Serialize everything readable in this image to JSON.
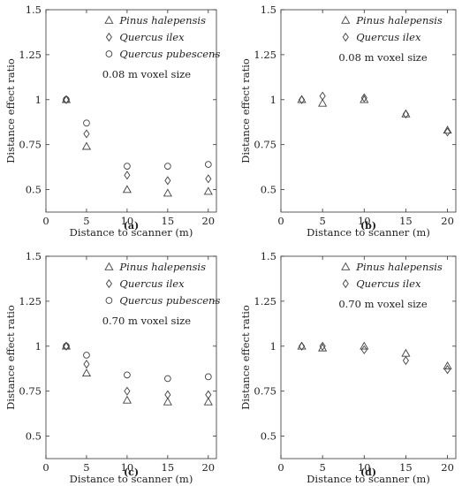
{
  "figure": {
    "marker_color": "#404040",
    "axis_color": "#333333"
  },
  "chart_data": [
    {
      "type": "scatter",
      "caption": "(a)",
      "annotation": "0.08 m voxel size",
      "xlabel": "Distance to scanner (m)",
      "ylabel": "Distance effect ratio",
      "xlim": [
        0,
        21
      ],
      "ylim": [
        0.375,
        1.5
      ],
      "xticks": [
        0,
        5,
        10,
        15,
        20
      ],
      "yticks": [
        0.5,
        0.75,
        1,
        1.25,
        1.5
      ],
      "ytick_labels": [
        "0.5",
        "0.75",
        "1",
        "1.25",
        "1.5"
      ],
      "grid": false,
      "legend_position": "top-right",
      "series": [
        {
          "name": "Pinus halepensis",
          "marker": "triangle",
          "x": [
            2.5,
            5,
            10,
            15,
            20
          ],
          "y": [
            1.0,
            0.74,
            0.5,
            0.48,
            0.49
          ]
        },
        {
          "name": "Quercus ilex",
          "marker": "diamond",
          "x": [
            2.5,
            5,
            10,
            15,
            20
          ],
          "y": [
            1.0,
            0.81,
            0.58,
            0.55,
            0.56
          ]
        },
        {
          "name": "Quercus pubescens",
          "marker": "circle",
          "x": [
            2.5,
            5,
            10,
            15,
            20
          ],
          "y": [
            1.0,
            0.87,
            0.63,
            0.63,
            0.64
          ]
        }
      ]
    },
    {
      "type": "scatter",
      "caption": "(b)",
      "annotation": "0.08 m voxel size",
      "xlabel": "Distance to scanner (m)",
      "ylabel": "Distance effect ratio",
      "xlim": [
        0,
        21
      ],
      "ylim": [
        0.375,
        1.5
      ],
      "xticks": [
        0,
        5,
        10,
        15,
        20
      ],
      "yticks": [
        0.5,
        0.75,
        1,
        1.25,
        1.5
      ],
      "ytick_labels": [
        "0.5",
        "0.75",
        "1",
        "1.25",
        "1.5"
      ],
      "grid": false,
      "legend_position": "top-right",
      "series": [
        {
          "name": "Pinus halepensis",
          "marker": "triangle",
          "x": [
            2.5,
            5,
            10,
            15,
            20
          ],
          "y": [
            1.0,
            0.98,
            1.0,
            0.92,
            0.83
          ]
        },
        {
          "name": "Quercus ilex",
          "marker": "diamond",
          "x": [
            2.5,
            5,
            10,
            15,
            20
          ],
          "y": [
            1.0,
            1.02,
            1.01,
            0.92,
            0.82
          ]
        }
      ]
    },
    {
      "type": "scatter",
      "caption": "(c)",
      "annotation": "0.70 m voxel size",
      "xlabel": "Distance to scanner (m)",
      "ylabel": "Distance effect ratio",
      "xlim": [
        0,
        21
      ],
      "ylim": [
        0.375,
        1.5
      ],
      "xticks": [
        0,
        5,
        10,
        15,
        20
      ],
      "yticks": [
        0.5,
        0.75,
        1,
        1.25,
        1.5
      ],
      "ytick_labels": [
        "0.5",
        "0.75",
        "1",
        "1.25",
        "1.5"
      ],
      "grid": false,
      "legend_position": "top-right",
      "series": [
        {
          "name": "Pinus halepensis",
          "marker": "triangle",
          "x": [
            2.5,
            5,
            10,
            15,
            20
          ],
          "y": [
            1.0,
            0.85,
            0.7,
            0.69,
            0.69
          ]
        },
        {
          "name": "Quercus ilex",
          "marker": "diamond",
          "x": [
            2.5,
            5,
            10,
            15,
            20
          ],
          "y": [
            1.0,
            0.9,
            0.75,
            0.73,
            0.73
          ]
        },
        {
          "name": "Quercus pubescens",
          "marker": "circle",
          "x": [
            2.5,
            5,
            10,
            15,
            20
          ],
          "y": [
            1.0,
            0.95,
            0.84,
            0.82,
            0.83
          ]
        }
      ]
    },
    {
      "type": "scatter",
      "caption": "(d)",
      "annotation": "0.70 m voxel size",
      "xlabel": "Distance to scanner (m)",
      "ylabel": "Distance effect ratio",
      "xlim": [
        0,
        21
      ],
      "ylim": [
        0.375,
        1.5
      ],
      "xticks": [
        0,
        5,
        10,
        15,
        20
      ],
      "yticks": [
        0.5,
        0.75,
        1,
        1.25,
        1.5
      ],
      "ytick_labels": [
        "0.5",
        "0.75",
        "1",
        "1.25",
        "1.5"
      ],
      "grid": false,
      "legend_position": "top-right",
      "series": [
        {
          "name": "Pinus halepensis",
          "marker": "triangle",
          "x": [
            2.5,
            5,
            10,
            15,
            20
          ],
          "y": [
            1.0,
            0.99,
            1.0,
            0.96,
            0.89
          ]
        },
        {
          "name": "Quercus ilex",
          "marker": "diamond",
          "x": [
            2.5,
            5,
            10,
            15,
            20
          ],
          "y": [
            1.0,
            1.0,
            0.98,
            0.92,
            0.87
          ]
        }
      ]
    }
  ]
}
